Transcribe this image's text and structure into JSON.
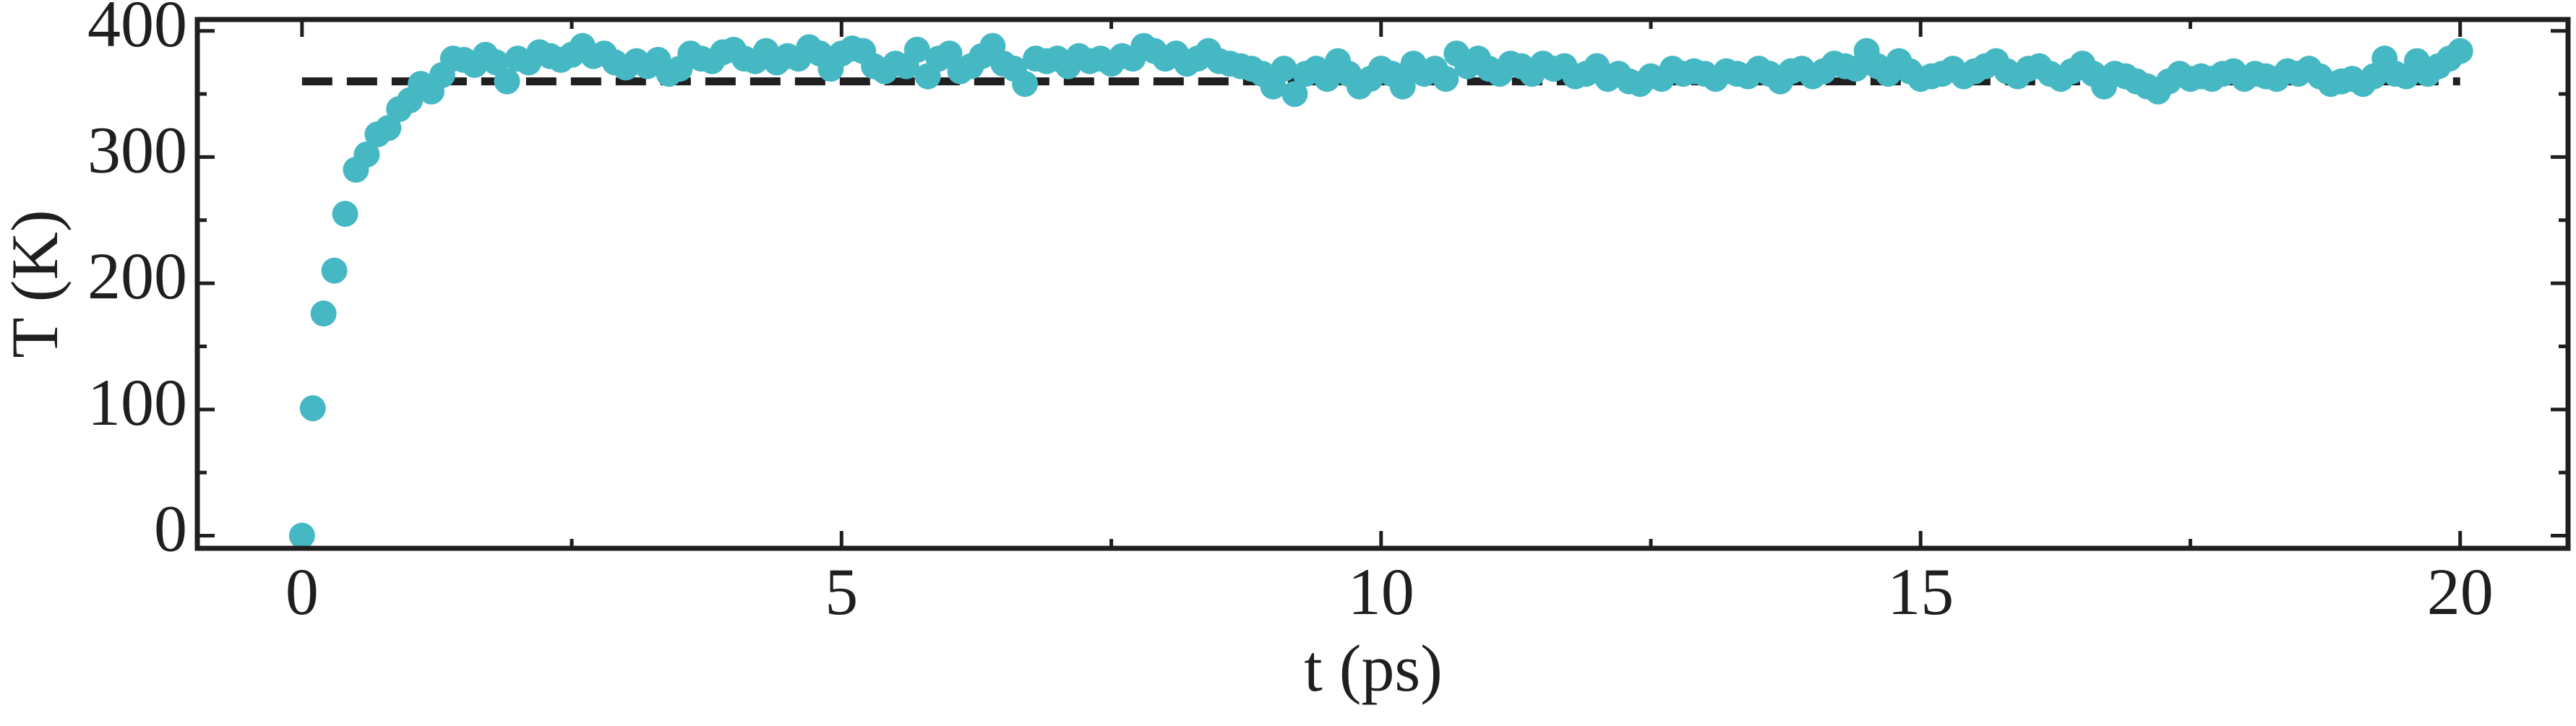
{
  "chart_data": {
    "type": "scatter",
    "xlabel": "t (ps)",
    "ylabel": "T (K)",
    "xlim": [
      -0.97,
      21.0
    ],
    "ylim": [
      -10,
      409
    ],
    "xticks": [
      0,
      5,
      10,
      15,
      20
    ],
    "yticks": [
      0,
      100,
      200,
      300,
      400
    ],
    "xminorticks": [
      2.5,
      7.5,
      12.5,
      17.5
    ],
    "yminorticks": [
      50,
      150,
      250,
      350
    ],
    "hline": {
      "value": 360,
      "color": "#1f1f1f",
      "style": "dashed",
      "xrange": [
        0,
        20
      ]
    },
    "series": [
      {
        "color": "#45b8c4",
        "x": [
          0,
          0.1,
          0.2,
          0.3,
          0.4,
          0.5,
          0.6,
          0.7,
          0.8,
          0.9,
          1,
          1.1,
          1.2,
          1.3,
          1.4,
          1.5,
          1.6,
          1.7,
          1.8,
          1.9,
          2,
          2.1,
          2.2,
          2.3,
          2.4,
          2.5,
          2.6,
          2.7,
          2.8,
          2.9,
          3,
          3.1,
          3.2,
          3.3,
          3.4,
          3.5,
          3.6,
          3.7,
          3.8,
          3.9,
          4,
          4.1,
          4.2,
          4.3,
          4.4,
          4.5,
          4.6,
          4.7,
          4.8,
          4.9,
          5,
          5.1,
          5.2,
          5.3,
          5.4,
          5.5,
          5.6,
          5.7,
          5.8,
          5.9,
          6,
          6.1,
          6.2,
          6.3,
          6.4,
          6.5,
          6.6,
          6.7,
          6.8,
          6.9,
          7,
          7.1,
          7.2,
          7.3,
          7.4,
          7.5,
          7.6,
          7.7,
          7.8,
          7.9,
          8,
          8.1,
          8.2,
          8.3,
          8.4,
          8.5,
          8.6,
          8.7,
          8.8,
          8.9,
          9,
          9.1,
          9.2,
          9.3,
          9.4,
          9.5,
          9.6,
          9.7,
          9.8,
          9.9,
          10,
          10.1,
          10.2,
          10.3,
          10.4,
          10.5,
          10.6,
          10.7,
          10.8,
          10.9,
          11,
          11.1,
          11.2,
          11.3,
          11.4,
          11.5,
          11.6,
          11.7,
          11.8,
          11.9,
          12,
          12.1,
          12.2,
          12.3,
          12.4,
          12.5,
          12.6,
          12.7,
          12.8,
          12.9,
          13,
          13.1,
          13.2,
          13.3,
          13.4,
          13.5,
          13.6,
          13.7,
          13.8,
          13.9,
          14,
          14.1,
          14.2,
          14.3,
          14.4,
          14.5,
          14.6,
          14.7,
          14.8,
          14.9,
          15,
          15.1,
          15.2,
          15.3,
          15.4,
          15.5,
          15.6,
          15.7,
          15.8,
          15.9,
          16,
          16.1,
          16.2,
          16.3,
          16.4,
          16.5,
          16.6,
          16.7,
          16.8,
          16.9,
          17,
          17.1,
          17.2,
          17.3,
          17.4,
          17.5,
          17.6,
          17.7,
          17.8,
          17.9,
          18,
          18.1,
          18.2,
          18.3,
          18.4,
          18.5,
          18.6,
          18.7,
          18.8,
          18.9,
          19,
          19.1,
          19.2,
          19.3,
          19.4,
          19.5,
          19.6,
          19.7,
          19.8,
          19.9,
          20
        ],
        "values": [
          0,
          101,
          176,
          210,
          255,
          290,
          302,
          318,
          323,
          338,
          345,
          358,
          352,
          365,
          378,
          377,
          373,
          381,
          375,
          360,
          378,
          375,
          383,
          380,
          377,
          381,
          388,
          380,
          382,
          375,
          371,
          376,
          372,
          377,
          366,
          370,
          382,
          378,
          376,
          383,
          385,
          378,
          376,
          384,
          375,
          380,
          378,
          387,
          382,
          370,
          382,
          386,
          384,
          372,
          368,
          374,
          372,
          385,
          364,
          378,
          382,
          368,
          372,
          380,
          388,
          374,
          370,
          358,
          378,
          376,
          378,
          372,
          380,
          376,
          378,
          374,
          380,
          378,
          388,
          384,
          378,
          382,
          374,
          378,
          384,
          376,
          374,
          372,
          370,
          366,
          356,
          370,
          350,
          366,
          370,
          362,
          376,
          366,
          356,
          362,
          370,
          366,
          356,
          374,
          366,
          370,
          362,
          382,
          372,
          378,
          370,
          366,
          374,
          372,
          366,
          374,
          370,
          372,
          364,
          366,
          372,
          362,
          366,
          360,
          358,
          364,
          362,
          370,
          366,
          368,
          366,
          362,
          368,
          366,
          364,
          370,
          366,
          360,
          368,
          370,
          364,
          368,
          374,
          372,
          370,
          384,
          372,
          366,
          376,
          368,
          362,
          364,
          366,
          370,
          364,
          368,
          372,
          376,
          368,
          364,
          370,
          372,
          366,
          362,
          368,
          374,
          366,
          356,
          366,
          364,
          360,
          356,
          352,
          360,
          366,
          362,
          364,
          362,
          366,
          368,
          362,
          366,
          364,
          362,
          368,
          366,
          370,
          364,
          358,
          360,
          362,
          358,
          364,
          378,
          366,
          364,
          376,
          366,
          372,
          378,
          384
        ]
      }
    ]
  }
}
